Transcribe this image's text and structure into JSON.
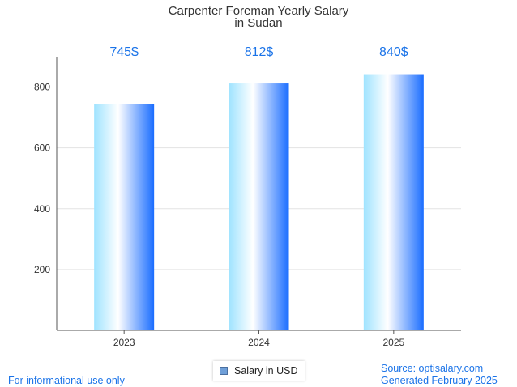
{
  "chart_data": {
    "type": "bar",
    "title": [
      "Carpenter Foreman Yearly Salary",
      "in Sudan"
    ],
    "categories": [
      "2023",
      "2024",
      "2025"
    ],
    "series": [
      {
        "name": "Salary in USD",
        "values": [
          745,
          812,
          840
        ]
      }
    ],
    "value_labels": [
      "745$",
      "812$",
      "840$"
    ],
    "y_ticks": [
      200,
      400,
      600,
      800
    ],
    "ylim": [
      0,
      900
    ],
    "grid": true,
    "legend": "bottom-center",
    "colors": {
      "bar_dark": "#1a6dff",
      "bar_light": "#9fe3ff",
      "label": "#1a73e8"
    }
  },
  "footer": {
    "disclaimer": "For informational use only",
    "source": "Source: optisalary.com",
    "generated": "Generated February 2025"
  }
}
